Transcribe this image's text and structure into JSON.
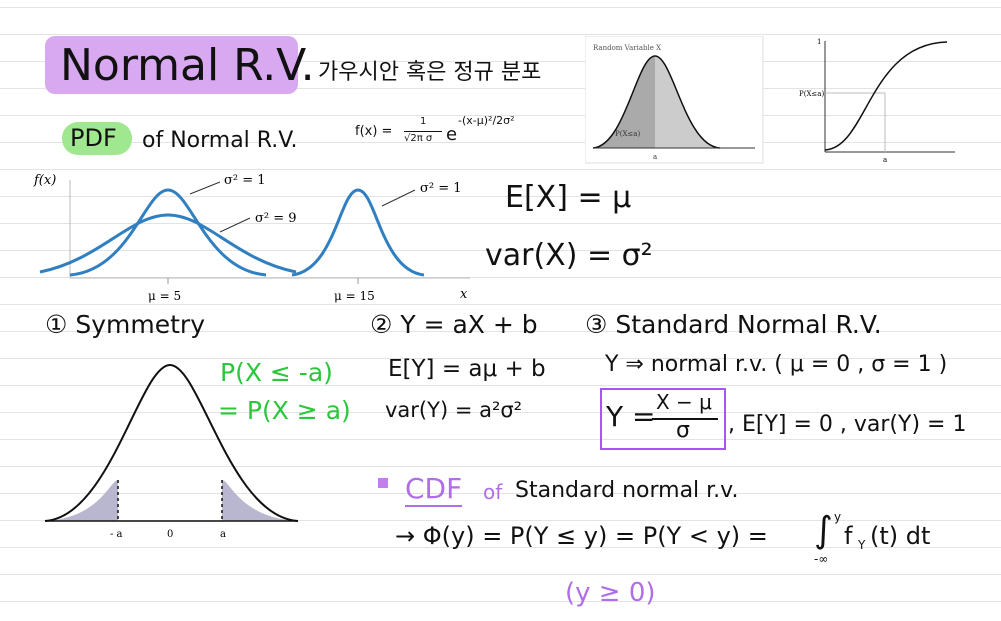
{
  "header": {
    "title": "Normal R.V.",
    "subtitle": "가우시안 혹은 정규 분포"
  },
  "pdf_heading": {
    "highlight": "PDF",
    "rest": "of Normal R.V.",
    "formula": {
      "lhs": "f(x) =",
      "numerator": "1",
      "denominator": "√2π σ",
      "base": "e",
      "exponent": "-(x-μ)²/2σ²"
    }
  },
  "figure_pdf": {
    "title": "Random Variable X",
    "area_label": "P(X≤a)",
    "x_label": "a"
  },
  "figure_cdf": {
    "top_label": "1",
    "y_label": "P(X≤a)",
    "x_label": "a"
  },
  "pdf_plot": {
    "y_label": "f(x)",
    "x_label": "x",
    "annotations": [
      "σ² = 1",
      "σ² = 9",
      "σ² = 1"
    ],
    "means": [
      "μ = 5",
      "μ = 15"
    ]
  },
  "moments": {
    "mean": "E[X] = μ",
    "variance": "var(X) = σ²"
  },
  "symmetry": {
    "heading": "① Symmetry",
    "rule_1": "P(X ≤ -a)",
    "rule_2": "= P(X ≥ a)",
    "plot_labels": [
      "- a",
      "0",
      "a"
    ]
  },
  "linear": {
    "heading": "② Y = aX + b",
    "mean": "E[Y] = aμ + b",
    "variance": "var(Y) = a²σ²"
  },
  "standard": {
    "heading": "③ Standard Normal R.V.",
    "definition": "Y ⇒ normal r.v. ( μ = 0 , σ = 1 )",
    "box_lhs": "Y =",
    "box_numerator": "X − μ",
    "box_denominator": "σ",
    "moments": ", E[Y] = 0 , var(Y) = 1"
  },
  "cdf": {
    "highlight": "CDF",
    "of": "of",
    "rest": "Standard normal r.v.",
    "formula": "→ Φ(y) = P(Y ≤ y) = P(Y < y) =",
    "integral": "∫",
    "upper": "y",
    "lower": "-∞",
    "integrand": "f",
    "subscript": "Y",
    "tail": "(t) dt",
    "condition": "(y ≥ 0)"
  }
}
